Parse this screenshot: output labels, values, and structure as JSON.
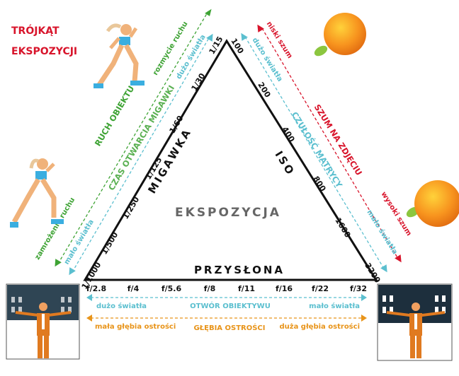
{
  "title": {
    "line1": "TRÓJKĄT",
    "line2": "EKSPOZYCJI"
  },
  "center_label": "EKSPOZYCJA",
  "colors": {
    "title": "#d8142b",
    "green": "#3ea334",
    "cyan": "#5bbfcf",
    "red": "#d8142b",
    "orange": "#e8941a",
    "center": "#666666"
  },
  "shutter": {
    "label": "MIGAWKA",
    "values": [
      "1/15",
      "1/30",
      "1/60",
      "1/125",
      "1/250",
      "1/500",
      "1/1000"
    ],
    "motion": {
      "top": "rozmycie ruchu",
      "middle": "RUCH OBIEKTU",
      "bottom": "zamrożenie ruchu"
    },
    "light": {
      "top": "dużo światła",
      "middle": "CZAS OTWARCIA MIGAWKI",
      "bottom": "mało światła"
    }
  },
  "iso": {
    "label": "ISO",
    "values": [
      "100",
      "200",
      "400",
      "800",
      "1600",
      "3200"
    ],
    "noise": {
      "top": "niski szum",
      "middle": "SZUM NA ZDJĘCIU",
      "bottom": "wysoki szum"
    },
    "light": {
      "top": "dużo światła",
      "middle": "CZUŁOŚĆ MATRYCY",
      "bottom": "mało światła"
    }
  },
  "aperture": {
    "label": "PRZYSŁONA",
    "values": [
      "f/2.8",
      "f/4",
      "f/5.6",
      "f/8",
      "f/11",
      "f/16",
      "f/22",
      "f/32"
    ],
    "light": {
      "left": "dużo światła",
      "middle": "OTWÓR OBIEKTYWU",
      "right": "mało światła"
    },
    "depth": {
      "left": "mała głębia ostrości",
      "middle": "GŁĘBIA OSTROŚCI",
      "right": "duża głębia ostrości"
    }
  }
}
